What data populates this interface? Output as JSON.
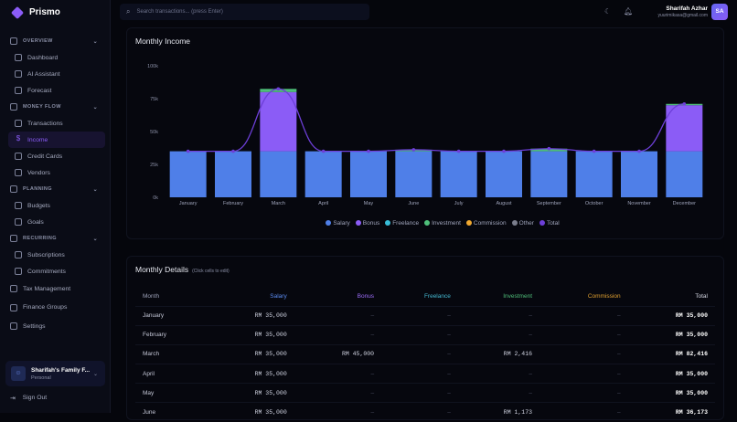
{
  "app": {
    "name": "Prismo"
  },
  "sidebar": {
    "sections": [
      {
        "label": "OVERVIEW",
        "icon": "grid-icon",
        "items": [
          {
            "label": "Dashboard",
            "icon": "dashboard-icon"
          },
          {
            "label": "AI Assistant",
            "icon": "sparkles-icon"
          },
          {
            "label": "Forecast",
            "icon": "trending-up-icon"
          }
        ]
      },
      {
        "label": "MONEY FLOW",
        "icon": "wallet-icon",
        "items": [
          {
            "label": "Transactions",
            "icon": "wallet-icon"
          },
          {
            "label": "Income",
            "icon": "dollar-icon",
            "active": true
          },
          {
            "label": "Credit Cards",
            "icon": "credit-card-icon"
          },
          {
            "label": "Vendors",
            "icon": "store-icon"
          }
        ]
      },
      {
        "label": "PLANNING",
        "icon": "target-icon",
        "items": [
          {
            "label": "Budgets",
            "icon": "clock-icon"
          },
          {
            "label": "Goals",
            "icon": "target-icon"
          }
        ]
      },
      {
        "label": "RECURRING",
        "icon": "card-icon",
        "items": [
          {
            "label": "Subscriptions",
            "icon": "card-icon"
          },
          {
            "label": "Commitments",
            "icon": "calendar-icon"
          }
        ]
      }
    ],
    "top_items": [
      {
        "label": "Tax Management",
        "icon": "receipt-icon"
      },
      {
        "label": "Finance Groups",
        "icon": "users-icon"
      },
      {
        "label": "Settings",
        "icon": "gear-icon"
      }
    ],
    "profile": {
      "name": "Sharifah's Family F...",
      "type": "Personal"
    },
    "sign_out": "Sign Out"
  },
  "header": {
    "search_placeholder": "Search transactions... (press Enter)",
    "user_name": "Sharifah Azhar",
    "user_email": "yuurimikasa@gmail.com",
    "avatar_initials": "SA"
  },
  "chart_panel": {
    "title": "Monthly Income"
  },
  "chart_data": {
    "type": "bar",
    "stacked": true,
    "categories": [
      "January",
      "February",
      "March",
      "April",
      "May",
      "June",
      "July",
      "August",
      "September",
      "October",
      "November",
      "December"
    ],
    "yticks": [
      "0k",
      "25k",
      "50k",
      "75k",
      "100k"
    ],
    "ylim": [
      0,
      100000
    ],
    "legend_position": "bottom",
    "series": [
      {
        "name": "Salary",
        "color": "#4f7fe8",
        "values": [
          35000,
          35000,
          35000,
          35000,
          35000,
          35000,
          35000,
          35000,
          35000,
          35000,
          35000,
          35000
        ]
      },
      {
        "name": "Bonus",
        "color": "#8b5cf6",
        "values": [
          0,
          0,
          45000,
          0,
          0,
          0,
          0,
          0,
          0,
          0,
          0,
          35000
        ]
      },
      {
        "name": "Freelance",
        "color": "#38bdd8",
        "values": [
          0,
          0,
          0,
          0,
          0,
          0,
          0,
          0,
          0,
          0,
          0,
          0
        ]
      },
      {
        "name": "Investment",
        "color": "#4fbf7a",
        "values": [
          0,
          0,
          2416,
          0,
          0,
          1173,
          0,
          0,
          2000,
          0,
          0,
          1000
        ]
      },
      {
        "name": "Commission",
        "color": "#f0a830",
        "values": [
          0,
          0,
          0,
          0,
          0,
          0,
          0,
          0,
          0,
          0,
          0,
          0
        ]
      },
      {
        "name": "Other",
        "color": "#7a7d8c",
        "values": [
          0,
          0,
          0,
          0,
          0,
          0,
          0,
          0,
          0,
          0,
          0,
          0
        ]
      }
    ],
    "line": {
      "name": "Total",
      "color": "#6d3fd8",
      "values": [
        35000,
        35000,
        82416,
        35000,
        35000,
        36173,
        35000,
        35000,
        37000,
        35000,
        35000,
        71000
      ]
    }
  },
  "details": {
    "title": "Monthly Details",
    "hint": "(Click cells to edit)",
    "columns": [
      {
        "label": "Month",
        "color": "#9ea3ba"
      },
      {
        "label": "Salary",
        "color": "#5b8cf0"
      },
      {
        "label": "Bonus",
        "color": "#9b6cf6"
      },
      {
        "label": "Freelance",
        "color": "#44b8d0"
      },
      {
        "label": "Investment",
        "color": "#4fbf7a"
      },
      {
        "label": "Commission",
        "color": "#e0a030"
      },
      {
        "label": "Total",
        "color": "#d6d8e4"
      }
    ],
    "rows": [
      [
        "January",
        "RM 35,000",
        "–",
        "–",
        "–",
        "–",
        "RM 35,000"
      ],
      [
        "February",
        "RM 35,000",
        "–",
        "–",
        "–",
        "–",
        "RM 35,000"
      ],
      [
        "March",
        "RM 35,000",
        "RM 45,000",
        "–",
        "RM 2,416",
        "–",
        "RM 82,416"
      ],
      [
        "April",
        "RM 35,000",
        "–",
        "–",
        "–",
        "–",
        "RM 35,000"
      ],
      [
        "May",
        "RM 35,000",
        "–",
        "–",
        "–",
        "–",
        "RM 35,000"
      ],
      [
        "June",
        "RM 35,000",
        "–",
        "–",
        "RM 1,173",
        "–",
        "RM 36,173"
      ]
    ]
  }
}
